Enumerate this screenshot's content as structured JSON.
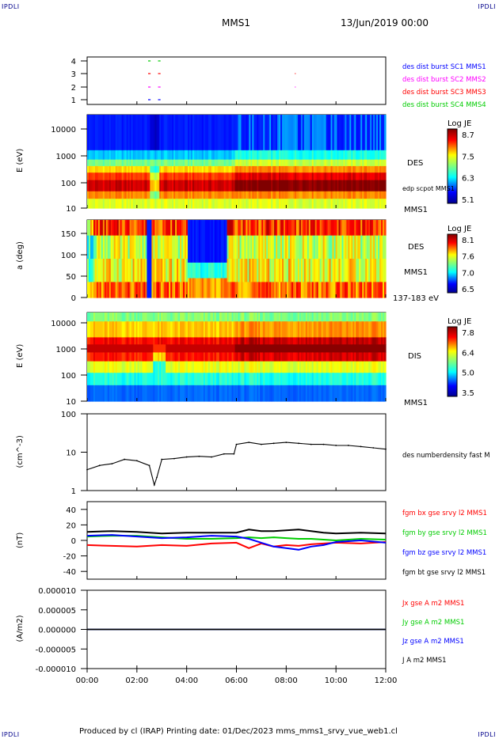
{
  "corner_label": "IPDLI",
  "header": {
    "spacecraft": "MMS1",
    "datetime": "13/Jun/2019 00:00"
  },
  "footer": "Produced by cl (IRAP)   Printing date: 01/Dec/2023   mms_mms1_srvy_vue_web1.cl",
  "time_ticks": [
    "00:00",
    "02:00",
    "04:00",
    "06:00",
    "08:00",
    "10:00",
    "12:00"
  ],
  "colors": {
    "mms1": "#0000ff",
    "mms2": "#ff00ff",
    "mms3": "#ff0000",
    "mms4": "#00cc00"
  },
  "chart_data": [
    {
      "type": "scatter",
      "panel": "burst",
      "y_ticks": [
        "4",
        "3",
        "2",
        "1"
      ],
      "legend": [
        {
          "name": "des dist burst SC1 MMS1",
          "color": "#0000ff"
        },
        {
          "name": "des dist burst SC2 MMS2",
          "color": "#ff00ff"
        },
        {
          "name": "des dist burst SC3 MMS3",
          "color": "#ff0000"
        },
        {
          "name": "des dist burst SC4 MMS4",
          "color": "#00cc00"
        }
      ],
      "series": [
        {
          "sc": 4,
          "values": [
            [
              2.45,
              2.55
            ],
            [
              2.85,
              2.95
            ]
          ]
        },
        {
          "sc": 3,
          "values": [
            [
              2.45,
              2.55
            ],
            [
              2.85,
              2.95
            ],
            [
              8.35,
              8.37
            ]
          ]
        },
        {
          "sc": 2,
          "values": [
            [
              2.45,
              2.55
            ],
            [
              2.85,
              2.95
            ],
            [
              8.35,
              8.37
            ]
          ]
        },
        {
          "sc": 1,
          "values": [
            [
              2.45,
              2.55
            ],
            [
              2.85,
              2.95
            ]
          ]
        }
      ]
    },
    {
      "type": "heatmap",
      "panel": "des_energy",
      "ylabel": "E (eV)",
      "y_ticks": [
        "10000",
        "1000",
        "100",
        "10"
      ],
      "colorbar": {
        "title": "Log JE",
        "ticks": [
          "8.7",
          "7.5",
          "6.3",
          "5.1"
        ]
      },
      "labels": [
        "DES",
        "edp scpot MMS1",
        "MMS1"
      ]
    },
    {
      "type": "heatmap",
      "panel": "des_pitch",
      "ylabel": "a (deg)",
      "y_ticks": [
        "150",
        "100",
        "50",
        "0"
      ],
      "colorbar": {
        "title": "Log JE",
        "ticks": [
          "8.1",
          "7.6",
          "7.0",
          "6.5"
        ]
      },
      "labels": [
        "DES",
        "MMS1",
        "137-183 eV"
      ]
    },
    {
      "type": "heatmap",
      "panel": "dis_energy",
      "ylabel": "E (eV)",
      "y_ticks": [
        "10000",
        "1000",
        "100",
        "10"
      ],
      "colorbar": {
        "title": "Log JE",
        "ticks": [
          "7.8",
          "6.4",
          "5.0",
          "3.5"
        ]
      },
      "labels": [
        "DIS",
        "MMS1"
      ]
    },
    {
      "type": "line",
      "panel": "density",
      "ylabel": "(cm^-3)",
      "y_ticks": [
        "100",
        "10",
        "1"
      ],
      "ylim": [
        1,
        100
      ],
      "legend": [
        {
          "name": "des numberdensity fast M",
          "color": "#000000"
        }
      ],
      "x": [
        0,
        0.5,
        1,
        1.5,
        2,
        2.5,
        2.7,
        2.8,
        3,
        3.5,
        4,
        4.5,
        5,
        5.5,
        5.9,
        6,
        6.5,
        7,
        7.5,
        8,
        8.5,
        9,
        9.5,
        10,
        10.5,
        11,
        11.5,
        12
      ],
      "values": [
        3.5,
        4.5,
        5,
        6.5,
        6,
        4.5,
        1.4,
        2.2,
        6.5,
        6.8,
        7.5,
        7.8,
        7.5,
        9,
        9,
        16,
        18,
        16,
        17,
        18,
        17,
        16,
        16,
        15,
        15,
        14,
        13,
        12
      ]
    },
    {
      "type": "line",
      "panel": "magnetic_field",
      "ylabel": "(nT)",
      "y_ticks": [
        "40",
        "20",
        "0",
        "-20",
        "-40"
      ],
      "ylim": [
        -50,
        50
      ],
      "x": [
        0,
        1,
        2,
        3,
        4,
        5,
        6,
        6.5,
        7,
        7.5,
        8,
        8.5,
        9,
        9.5,
        10,
        11,
        12
      ],
      "series": [
        {
          "name": "fgm bx gse srvy l2 MMS1",
          "color": "#ff0000",
          "values": [
            -6,
            -7,
            -8,
            -6,
            -7,
            -4,
            -3,
            -10,
            -4,
            -8,
            -6,
            -7,
            -5,
            -4,
            -3,
            -4,
            -2
          ]
        },
        {
          "name": "fgm by gse srvy l2 MMS1",
          "color": "#00cc00",
          "values": [
            5,
            6,
            6,
            4,
            2,
            2,
            3,
            4,
            3,
            4,
            3,
            2,
            2,
            1,
            0,
            2,
            1
          ]
        },
        {
          "name": "fgm bz gse srvy l2 MMS1",
          "color": "#0000ff",
          "values": [
            6,
            7,
            5,
            3,
            4,
            6,
            5,
            2,
            -3,
            -8,
            -10,
            -12,
            -8,
            -6,
            -2,
            0,
            -3
          ]
        },
        {
          "name": "fgm bt gse srvy l2 MMS1",
          "color": "#000000",
          "values": [
            11,
            12,
            11,
            9,
            10,
            10,
            10,
            14,
            12,
            12,
            13,
            14,
            12,
            10,
            9,
            10,
            9
          ]
        }
      ]
    },
    {
      "type": "line",
      "panel": "current",
      "ylabel": "(A/m2)",
      "y_ticks": [
        "0.000010",
        "0.000005",
        "0.000000",
        "-0.000005",
        "-0.000010"
      ],
      "ylim": [
        -1e-05,
        1e-05
      ],
      "x": [
        0,
        12
      ],
      "series": [
        {
          "name": "Jx gse A m2 MMS1",
          "color": "#ff0000",
          "values": [
            0,
            0
          ]
        },
        {
          "name": "Jy gse A m2 MMS1",
          "color": "#00cc00",
          "values": [
            0,
            0
          ]
        },
        {
          "name": "Jz gse A m2 MMS1",
          "color": "#0000ff",
          "values": [
            0,
            0
          ]
        },
        {
          "name": "J A m2 MMS1",
          "color": "#000000",
          "values": [
            0,
            0
          ]
        }
      ]
    }
  ]
}
